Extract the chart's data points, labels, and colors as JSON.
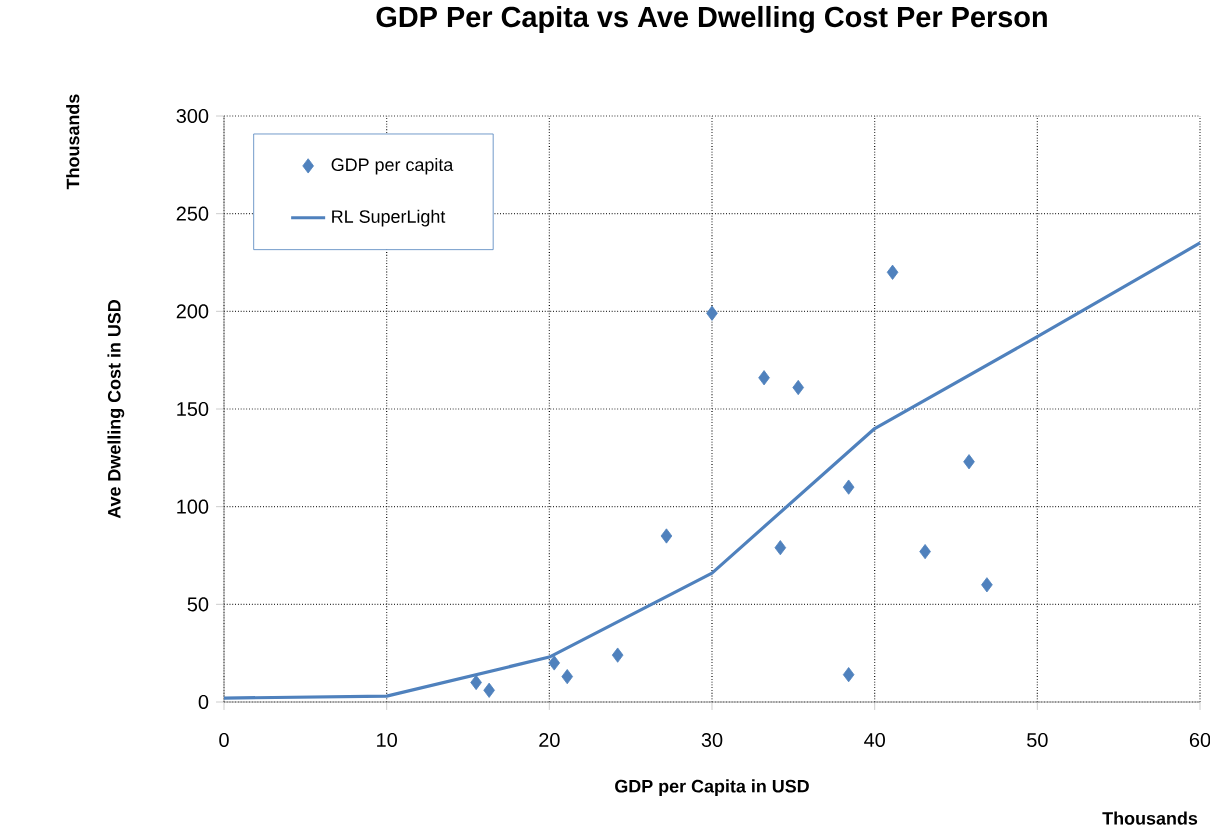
{
  "chart_data": {
    "type": "scatter",
    "title": "GDP Per Capita vs Ave Dwelling Cost Per Person",
    "xlabel": "GDP per Capita in USD",
    "ylabel": "Ave Dwelling Cost in USD",
    "annotations": [
      "Thousands",
      "Thousands"
    ],
    "series": [
      {
        "name": "GDP per capita",
        "marker": "diamond",
        "color": "#4f81bd",
        "x": [
          15.5,
          16.3,
          20.3,
          21.1,
          24.2,
          27.2,
          30.0,
          33.2,
          34.2,
          35.3,
          38.4,
          38.4,
          41.1,
          43.1,
          45.8,
          46.9
        ],
        "values": [
          10,
          6,
          20,
          13,
          24,
          85,
          199,
          166,
          79,
          161,
          110,
          14,
          220,
          77,
          123,
          60
        ]
      },
      {
        "name": "RL SuperLight",
        "type": "line",
        "marker": "none",
        "color": "#4f81bd",
        "x": [
          0,
          10,
          20,
          30,
          40,
          50,
          60
        ],
        "values": [
          2,
          3,
          23,
          66,
          140,
          187,
          235
        ]
      }
    ],
    "xlim": [
      0,
      60
    ],
    "xticks": [
      0,
      10,
      20,
      30,
      40,
      50,
      60
    ],
    "ylim": [
      0,
      300
    ],
    "yticks": [
      0,
      50,
      100,
      150,
      200,
      250,
      300
    ],
    "grid": true,
    "legend": "top left"
  }
}
